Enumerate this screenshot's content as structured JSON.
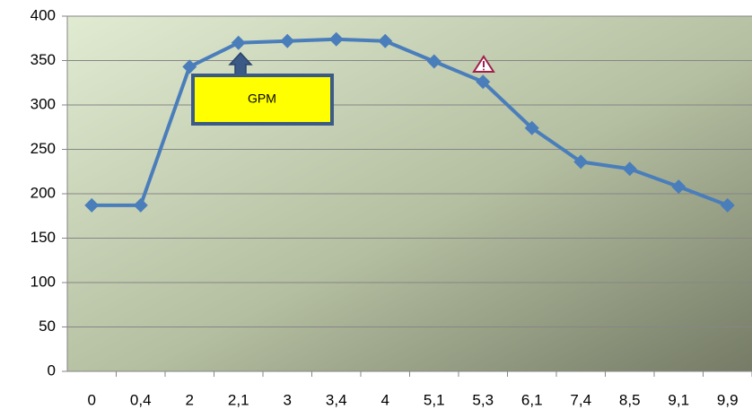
{
  "chart_data": {
    "type": "line",
    "categories": [
      "0",
      "0,4",
      "2",
      "2,1",
      "3",
      "3,4",
      "4",
      "5,1",
      "5,3",
      "6,1",
      "7,4",
      "8,5",
      "9,1",
      "9,9"
    ],
    "series": [
      {
        "name": "GPM",
        "color": "#4a7ebb",
        "values": [
          187,
          187,
          343,
          370,
          372,
          374,
          372,
          349,
          326,
          274,
          236,
          228,
          208,
          187
        ]
      }
    ],
    "ylim": [
      0,
      400
    ],
    "yticks": [
      0,
      50,
      100,
      150,
      200,
      250,
      300,
      350,
      400
    ],
    "grid": true,
    "annotation": "GPM"
  }
}
